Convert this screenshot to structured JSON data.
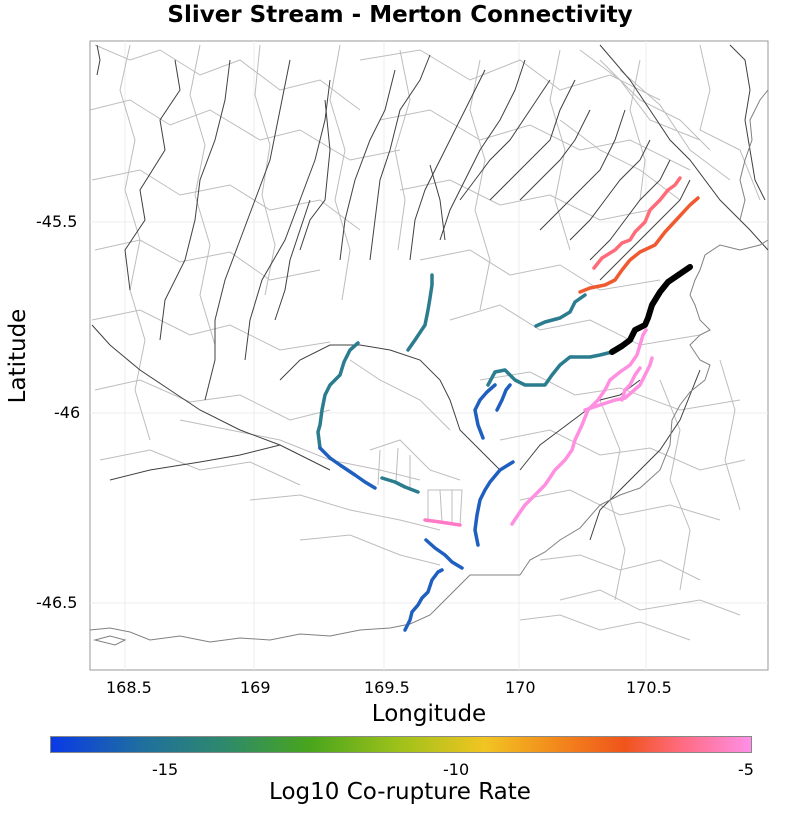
{
  "title": "Sliver Stream - Merton Connectivity",
  "axes": {
    "x_label": "Longitude",
    "y_label": "Latitude",
    "x_ticks": [
      "168.5",
      "169",
      "169.5",
      "170",
      "170.5"
    ],
    "y_ticks": [
      "-45.5",
      "-46",
      "-46.5"
    ]
  },
  "colorbar": {
    "title": "Log10 Co-rupture Rate",
    "tick_labels": [
      "-15",
      "-10",
      "-5"
    ],
    "colors": [
      "#0a3ae6",
      "#1f6f9f",
      "#2e8a6a",
      "#49a51c",
      "#a0c21a",
      "#f2c422",
      "#f28a1c",
      "#f0541c",
      "#ff6b7f",
      "#ff8fe8"
    ]
  },
  "legend_colors": {
    "source_fault": "#000000",
    "pink": "#ff8fe0",
    "salmon": "#ff6b78",
    "orange_red": "#f05a30",
    "teal": "#2a7c8e",
    "blue": "#1f5fbf",
    "fault_network": "#bdbdbd",
    "dark_fault": "#404040",
    "coastline": "#808080"
  }
}
